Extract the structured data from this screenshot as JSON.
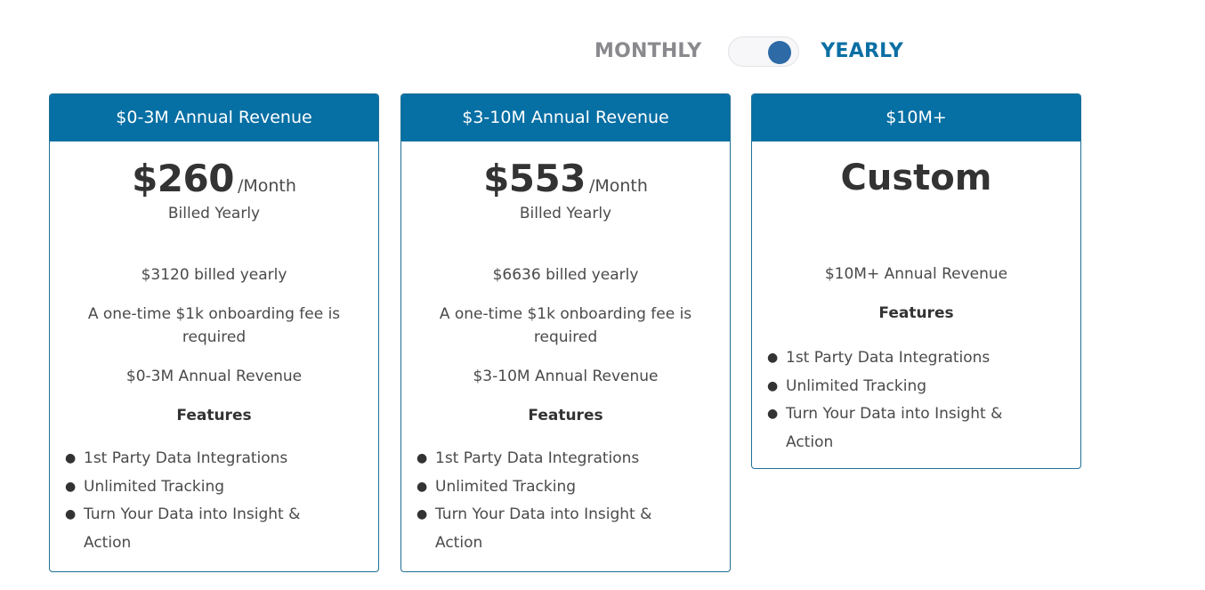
{
  "toggle": {
    "monthly_label": "MONTHLY",
    "yearly_label": "YEARLY",
    "selected": "YEARLY"
  },
  "colors": {
    "header_bg": "#066fa4",
    "active_label": "#0b6fa4",
    "inactive_label": "#8a8a8e",
    "toggle_knob": "#2d6aa6"
  },
  "plans": [
    {
      "header": "$0-3M Annual Revenue",
      "price": "$260",
      "price_unit": "/Month",
      "billed": "Billed Yearly",
      "total": "$3120 billed yearly",
      "fee": "A one-time $1k onboarding fee is required",
      "revenue": "$0-3M Annual Revenue",
      "features_title": "Features",
      "features": [
        "1st Party Data Integrations",
        "Unlimited Tracking",
        "Turn Your Data into Insight & Action"
      ]
    },
    {
      "header": "$3-10M Annual Revenue",
      "price": "$553",
      "price_unit": "/Month",
      "billed": "Billed Yearly",
      "total": "$6636 billed yearly",
      "fee": "A one-time $1k onboarding fee is required",
      "revenue": "$3-10M Annual Revenue",
      "features_title": "Features",
      "features": [
        "1st Party Data Integrations",
        "Unlimited Tracking",
        "Turn Your Data into Insight & Action"
      ]
    },
    {
      "header": "$10M+",
      "price": "Custom",
      "revenue": "$10M+ Annual Revenue",
      "features_title": "Features",
      "features": [
        "1st Party Data Integrations",
        "Unlimited Tracking",
        "Turn Your Data into Insight & Action"
      ]
    }
  ],
  "icons": {
    "bullet": "bullet-dot-icon"
  }
}
